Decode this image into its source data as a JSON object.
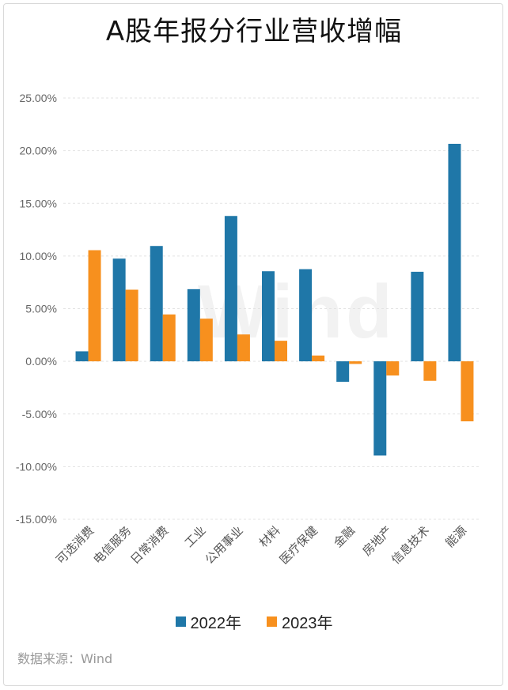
{
  "chart_data": {
    "type": "bar",
    "title": "A股年报分行业营收增幅",
    "xlabel": "",
    "ylabel": "",
    "ylim": [
      -15,
      25
    ],
    "yticks": [
      25,
      20,
      15,
      10,
      5,
      0,
      -5,
      -10,
      -15
    ],
    "ytick_labels": [
      "25.00%",
      "20.00%",
      "15.00%",
      "10.00%",
      "5.00%",
      "0.00%",
      "-5.00%",
      "-10.00%",
      "-15.00%"
    ],
    "categories": [
      "可选消费",
      "电信服务",
      "日常消费",
      "工业",
      "公用事业",
      "材料",
      "医疗保健",
      "金融",
      "房地产",
      "信息技术",
      "能源"
    ],
    "series": [
      {
        "name": "2022年",
        "color": "#1f77a8",
        "values": [
          0.95,
          9.75,
          10.95,
          6.85,
          13.8,
          8.55,
          8.75,
          -1.95,
          -8.95,
          8.5,
          20.65
        ]
      },
      {
        "name": "2023年",
        "color": "#f7901e",
        "values": [
          10.55,
          6.8,
          4.45,
          4.05,
          2.55,
          1.95,
          0.55,
          -0.25,
          -1.35,
          -1.85,
          -5.7
        ]
      }
    ],
    "legend_position": "bottom",
    "grid": true
  },
  "watermark": "Wind",
  "source": "数据来源：Wind"
}
